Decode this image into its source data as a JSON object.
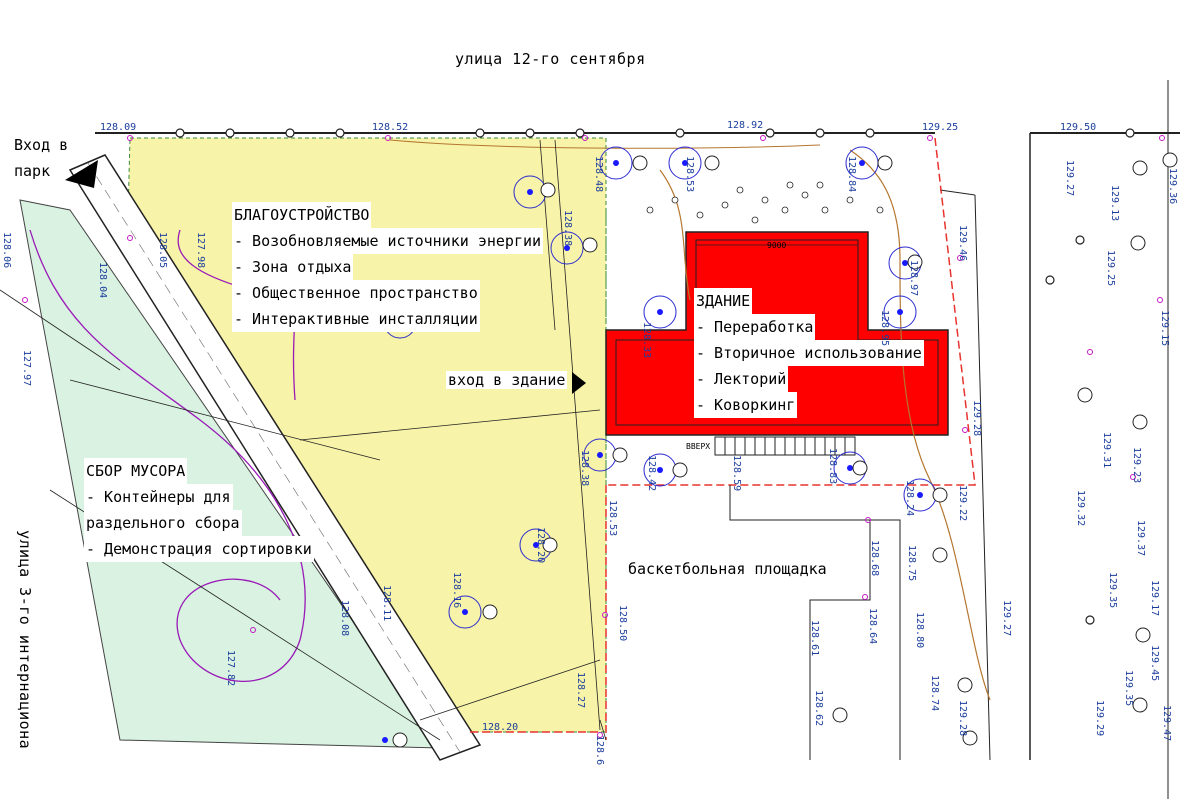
{
  "streets": {
    "north": "улица 12-го сентября",
    "west": "улица 3-го интернациона"
  },
  "park_entrance": {
    "line1": "Вход в",
    "line2": "парк"
  },
  "landscaping": {
    "title": "БЛАГОУСТРОЙСТВО",
    "items": [
      "- Возобновляемые источники энергии",
      "- Зона отдыха",
      "- Общественное пространство",
      "- Интерактивные инсталляции"
    ]
  },
  "building": {
    "title": "ЗДАНИЕ",
    "items": [
      "- Переработка",
      "- Вторичное использование",
      "- Лекторий",
      "- Коворкинг"
    ],
    "dimension": "9000",
    "stairs_label": "ВВЕРХ"
  },
  "building_entrance": "вход в здание",
  "waste": {
    "title": "СБОР МУСОРА",
    "items": [
      "- Контейнеры для",
      "раздельного сбора",
      "- Демонстрация сортировки"
    ]
  },
  "basketball": "баскетбольная площадка",
  "elevations_h": [
    "128.09",
    "128.52",
    "128.92",
    "129.25",
    "129.50",
    "128.20"
  ],
  "elevations_v": [
    "128.48",
    "128.53",
    "128.84",
    "128.38",
    "127.98",
    "128.04",
    "128.06",
    "127.97",
    "128.05",
    "129.46",
    "129.27",
    "129.13",
    "129.36",
    "129.25",
    "129.15",
    "128.97",
    "128.95",
    "128.33",
    "128.38",
    "128.42",
    "128.59",
    "128.83",
    "128.24",
    "129.22",
    "129.28",
    "129.31",
    "129.23",
    "129.32",
    "129.37",
    "129.35",
    "129.17",
    "128.53",
    "128.68",
    "128.75",
    "128.50",
    "128.61",
    "128.64",
    "128.80",
    "129.27",
    "129.35",
    "129.45",
    "128.27",
    "128.62",
    "128.74",
    "129.28",
    "129.29",
    "129.47",
    "128.16",
    "128.20",
    "128.08",
    "127.82",
    "128.11",
    "128.6"
  ],
  "colors": {
    "landscaping_zone": "#f7f3a8",
    "waste_zone": "#d9f2e1",
    "building": "#ff0000",
    "tree_circle": "#2b2bd1",
    "contour": "#9a1ab8",
    "path": "#b5762f",
    "boundary": "#e8332e"
  }
}
